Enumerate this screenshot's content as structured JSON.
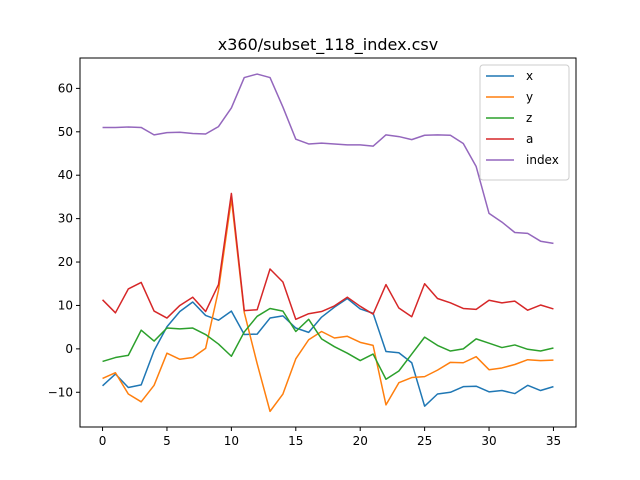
{
  "chart_data": {
    "type": "line",
    "title": "x360/subset_118_index.csv",
    "xlabel": "",
    "ylabel": "",
    "xlim": [
      -1.75,
      36.75
    ],
    "ylim": [
      -18,
      67
    ],
    "xticks": [
      0,
      5,
      10,
      15,
      20,
      25,
      30,
      35
    ],
    "yticks": [
      -10,
      0,
      10,
      20,
      30,
      40,
      50,
      60
    ],
    "grid": false,
    "legend_position": "top-right",
    "x": [
      0,
      1,
      2,
      3,
      4,
      5,
      6,
      7,
      8,
      9,
      10,
      11,
      12,
      13,
      14,
      15,
      16,
      17,
      18,
      19,
      20,
      21,
      22,
      23,
      24,
      25,
      26,
      27,
      28,
      29,
      30,
      31,
      32,
      33,
      34,
      35
    ],
    "series": [
      {
        "name": "x",
        "color": "#1f77b4",
        "values": [
          -8.5,
          -5.8,
          -8.9,
          -8.3,
          -0.4,
          5.1,
          8.6,
          10.8,
          7.7,
          6.6,
          8.7,
          3.3,
          3.4,
          7.1,
          7.6,
          4.8,
          3.8,
          7.3,
          9.6,
          11.6,
          9.2,
          8.2,
          -0.6,
          -0.9,
          -3.2,
          -13.2,
          -10.4,
          -10.0,
          -8.7,
          -8.6,
          -9.9,
          -9.6,
          -10.3,
          -8.4,
          -9.6,
          -8.7
        ]
      },
      {
        "name": "y",
        "color": "#ff7f0e",
        "values": [
          -6.8,
          -5.5,
          -10.4,
          -12.2,
          -8.4,
          -1.0,
          -2.4,
          -2.0,
          0.1,
          13.5,
          34.5,
          8.4,
          -3.4,
          -14.4,
          -10.4,
          -2.3,
          2.1,
          4.0,
          2.5,
          2.9,
          1.5,
          0.8,
          -12.9,
          -7.8,
          -6.6,
          -6.4,
          -4.9,
          -3.1,
          -3.2,
          -1.8,
          -4.8,
          -4.4,
          -3.6,
          -2.5,
          -2.7,
          -2.6
        ]
      },
      {
        "name": "z",
        "color": "#2ca02c",
        "values": [
          -2.9,
          -2.0,
          -1.5,
          4.3,
          1.8,
          4.8,
          4.6,
          4.8,
          3.3,
          1.1,
          -1.7,
          3.9,
          7.5,
          9.3,
          8.7,
          4.0,
          6.8,
          2.3,
          0.5,
          -1.0,
          -2.7,
          -1.2,
          -7.0,
          -5.1,
          -1.2,
          2.7,
          0.8,
          -0.5,
          0.0,
          2.3,
          1.3,
          0.3,
          0.9,
          -0.1,
          -0.5,
          0.2
        ]
      },
      {
        "name": "a",
        "color": "#d62728",
        "values": [
          11.3,
          8.3,
          13.8,
          15.3,
          8.7,
          7.1,
          10.0,
          11.9,
          8.6,
          14.8,
          35.8,
          8.8,
          9.0,
          18.4,
          15.4,
          6.8,
          8.1,
          8.6,
          9.9,
          11.9,
          9.8,
          8.0,
          14.8,
          9.4,
          7.4,
          15.0,
          11.6,
          10.6,
          9.3,
          9.1,
          11.2,
          10.6,
          11.0,
          8.9,
          10.1,
          9.2
        ]
      },
      {
        "name": "index",
        "color": "#9467bd",
        "values": [
          51.0,
          51.0,
          51.1,
          51.0,
          49.3,
          49.8,
          49.9,
          49.6,
          49.5,
          51.2,
          55.5,
          62.5,
          63.3,
          62.5,
          55.7,
          48.3,
          47.2,
          47.4,
          47.2,
          47.0,
          47.0,
          46.7,
          49.3,
          48.9,
          48.2,
          49.2,
          49.3,
          49.2,
          47.3,
          42.0,
          31.2,
          29.2,
          26.8,
          26.6,
          24.8,
          24.3
        ]
      }
    ]
  }
}
